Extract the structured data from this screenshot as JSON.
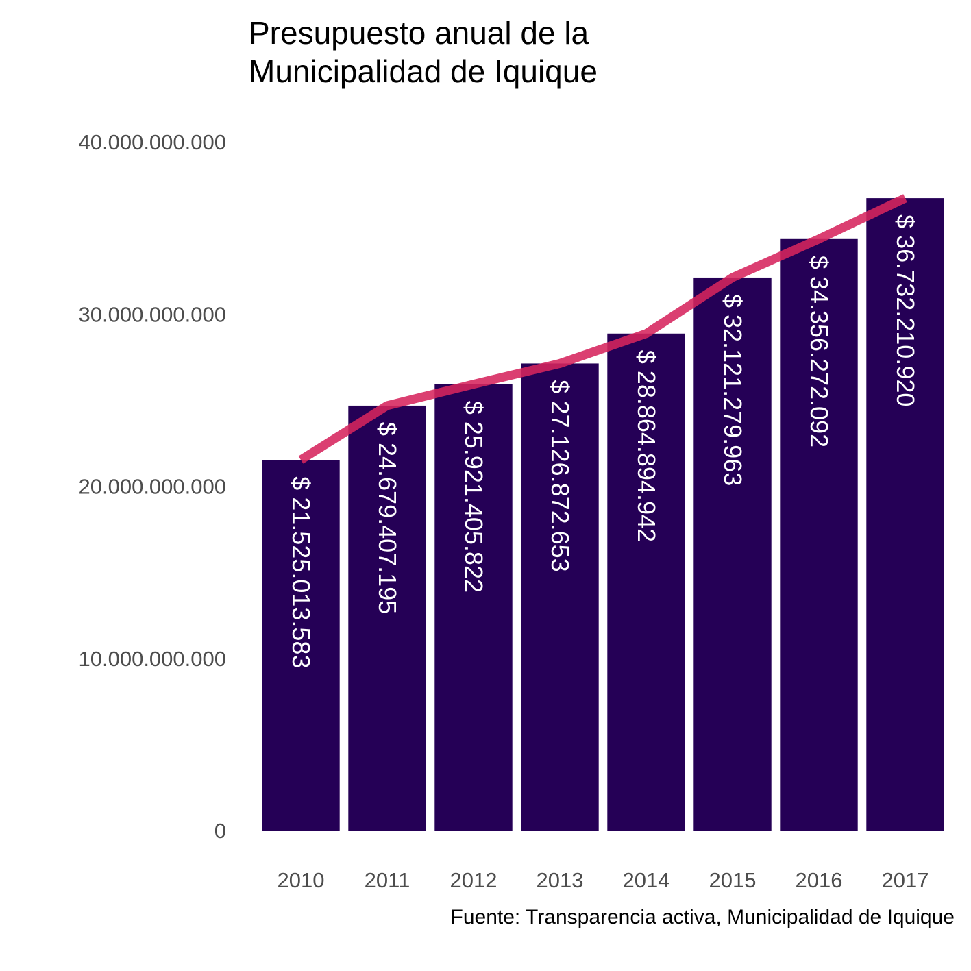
{
  "chart_data": {
    "type": "bar",
    "title_lines": [
      "Presupuesto anual de la",
      "Municipalidad de Iquique"
    ],
    "caption": "Fuente: Transparencia activa, Municipalidad de Iquique",
    "categories": [
      "2010",
      "2011",
      "2012",
      "2013",
      "2014",
      "2015",
      "2016",
      "2017"
    ],
    "values": [
      21525013583,
      24679407195,
      25921405822,
      27126872653,
      28864894942,
      32121279963,
      34356272092,
      36732210920
    ],
    "value_labels": [
      "$ 21.525.013.583",
      "$ 24.679.407.195",
      "$ 25.921.405.822",
      "$ 27.126.872.653",
      "$ 28.864.894.942",
      "$ 32.121.279.963",
      "$ 34.356.272.092",
      "$ 36.732.210.920"
    ],
    "ylim": [
      0,
      40000000000
    ],
    "y_ticks": [
      0,
      10000000000,
      20000000000,
      30000000000,
      40000000000
    ],
    "y_tick_labels": [
      "0",
      "10.000.000.000",
      "20.000.000.000",
      "30.000.000.000",
      "40.000.000.000"
    ],
    "overlay": "line",
    "grid": false,
    "colors": {
      "bar": "#250056",
      "line": "#d6245d",
      "bar_label": "#ffffff"
    }
  }
}
